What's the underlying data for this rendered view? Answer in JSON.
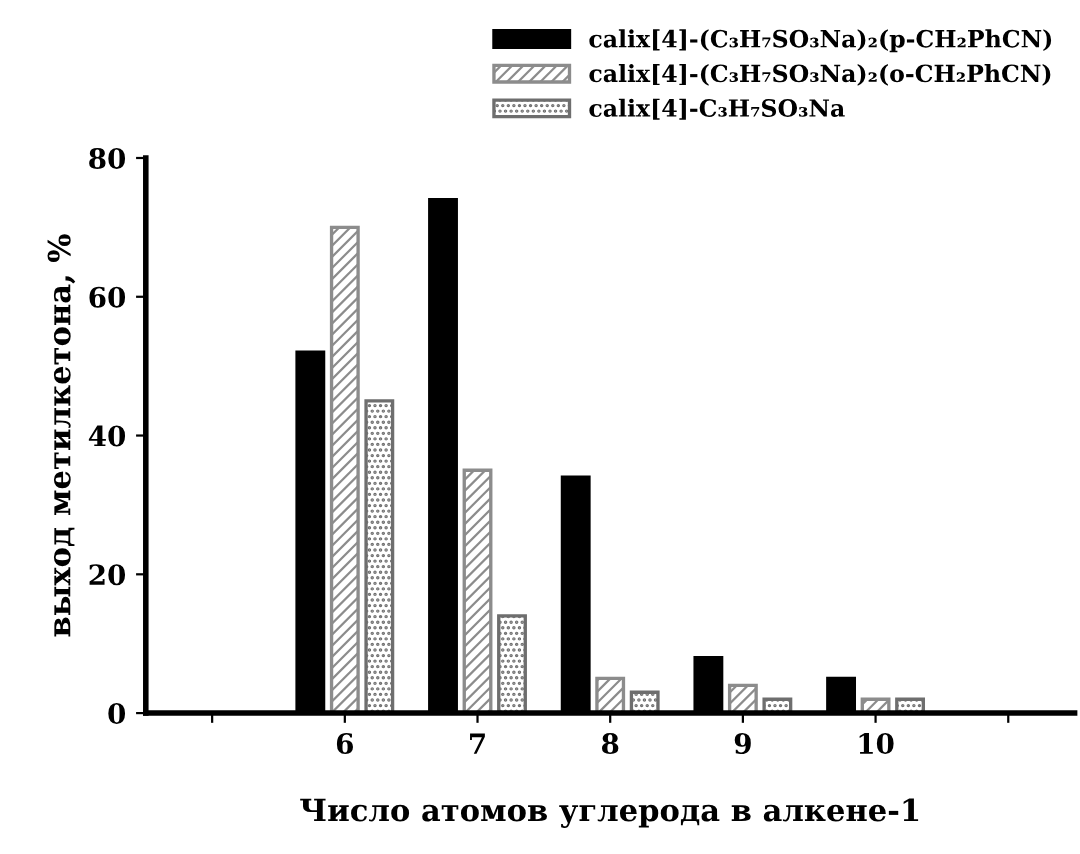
{
  "chart_data": {
    "type": "bar",
    "xlabel": "Число атомов углерода в алкене-1",
    "ylabel": "выход метилкетона, %",
    "categories": [
      null,
      "6",
      "7",
      "8",
      "9",
      "10",
      null
    ],
    "series": [
      {
        "name": "calix[4]-(C₃H₇SO₃Na)₂(p-CH₂PhCN)",
        "color": "#000000",
        "values": [
          null,
          52,
          74,
          34,
          8,
          5,
          null
        ]
      },
      {
        "name": "calix[4]-(C₃H₇SO₃Na)₂(o-CH₂PhCN)",
        "color": "#8c8c8c",
        "values": [
          null,
          70,
          35,
          5,
          4,
          2,
          null
        ]
      },
      {
        "name": "calix[4]-C₃H₇SO₃Na",
        "color": "#6e6e6e",
        "values": [
          null,
          45,
          14,
          3,
          2,
          2,
          null
        ]
      }
    ],
    "ylim": [
      0,
      80
    ],
    "yticks": [
      0,
      20,
      40,
      60,
      80
    ],
    "grid": false,
    "legend": "top right"
  }
}
